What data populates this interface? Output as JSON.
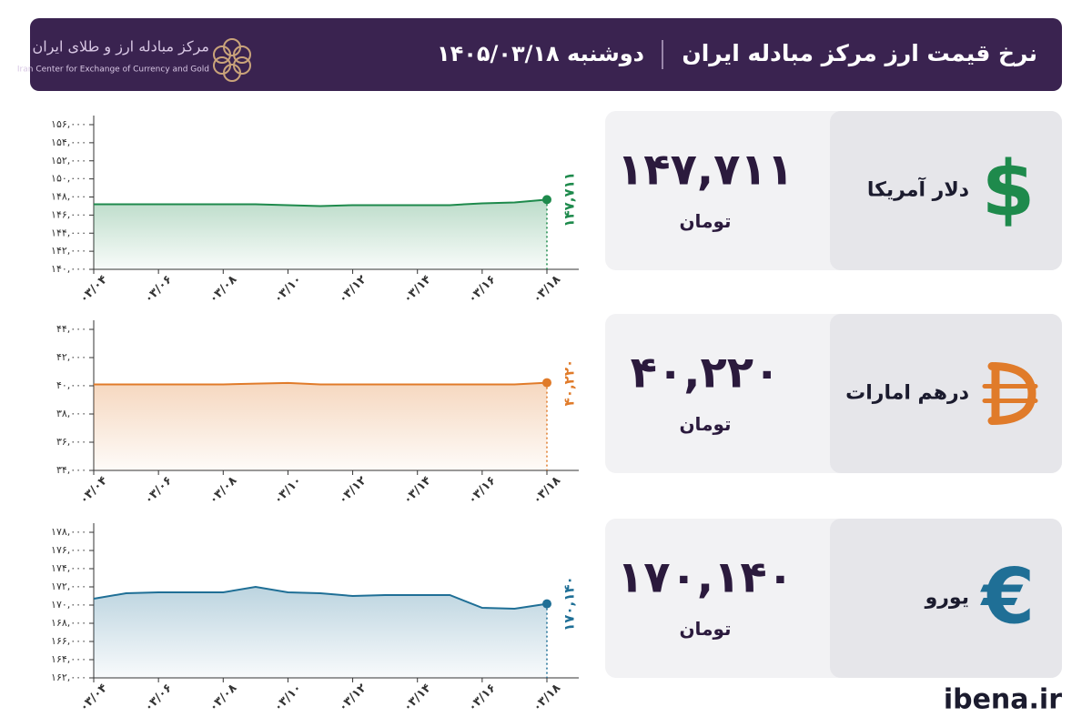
{
  "header": {
    "title": "نرخ قیمت ارز مرکز مبادله ایران",
    "date": "دوشنبه  ۱۴۰۵/۰۳/۱۸",
    "logo_name": "مرکز مبادله ارز و طلای ایران",
    "logo_subtitle": "Iran Center for Exchange of Currency and Gold"
  },
  "chart_data": [
    {
      "type": "line",
      "name": "دلار آمریکا",
      "symbol": "$",
      "price": "۱۴۷,۷۱۱",
      "unit": "تومان",
      "color": "#1e8a4c",
      "categories": [
        "۰۳/۰۴",
        null,
        "۰۳/۰۶",
        null,
        "۰۳/۰۸",
        null,
        "۰۳/۱۰",
        null,
        "۰۳/۱۲",
        null,
        "۰۳/۱۴",
        null,
        "۰۳/۱۶",
        null,
        "۰۳/۱۸"
      ],
      "values": [
        147200,
        147200,
        147200,
        147200,
        147200,
        147200,
        147100,
        147000,
        147100,
        147100,
        147100,
        147100,
        147300,
        147400,
        147711
      ],
      "value_labels": [
        null,
        null,
        null,
        null,
        null,
        null,
        null,
        null,
        null,
        null,
        null,
        null,
        null,
        null,
        "۱۴۷,۷۱۱"
      ],
      "ylim": [
        140000,
        156000
      ],
      "yticks": [
        {
          "value": 140000,
          "label": "۱۴۰,۰۰۰"
        },
        {
          "value": 142000,
          "label": "۱۴۲,۰۰۰"
        },
        {
          "value": 144000,
          "label": "۱۴۴,۰۰۰"
        },
        {
          "value": 146000,
          "label": "۱۴۶,۰۰۰"
        },
        {
          "value": 148000,
          "label": "۱۴۸,۰۰۰"
        },
        {
          "value": 150000,
          "label": "۱۵۰,۰۰۰"
        },
        {
          "value": 152000,
          "label": "۱۵۲,۰۰۰"
        },
        {
          "value": 154000,
          "label": "۱۵۴,۰۰۰"
        },
        {
          "value": 156000,
          "label": "۱۵۶,۰۰۰"
        }
      ]
    },
    {
      "type": "line",
      "name": "درهم امارات",
      "price": "۴۰,۲۲۰",
      "unit": "تومان",
      "color": "#e07b2a",
      "categories": [
        "۰۳/۰۴",
        null,
        "۰۳/۰۶",
        null,
        "۰۳/۰۸",
        null,
        "۰۳/۱۰",
        null,
        "۰۳/۱۲",
        null,
        "۰۳/۱۴",
        null,
        "۰۳/۱۶",
        null,
        "۰۳/۱۸"
      ],
      "values": [
        40100,
        40100,
        40100,
        40100,
        40100,
        40150,
        40200,
        40100,
        40100,
        40100,
        40100,
        40100,
        40100,
        40100,
        40220
      ],
      "value_labels": [
        null,
        null,
        null,
        null,
        null,
        null,
        null,
        null,
        null,
        null,
        null,
        null,
        null,
        null,
        "۴۰,۲۲۰"
      ],
      "ylim": [
        34000,
        44000
      ],
      "yticks": [
        {
          "value": 34000,
          "label": "۳۴,۰۰۰"
        },
        {
          "value": 36000,
          "label": "۳۶,۰۰۰"
        },
        {
          "value": 38000,
          "label": "۳۸,۰۰۰"
        },
        {
          "value": 40000,
          "label": "۴۰,۰۰۰"
        },
        {
          "value": 42000,
          "label": "۴۲,۰۰۰"
        },
        {
          "value": 44000,
          "label": "۴۴,۰۰۰"
        }
      ]
    },
    {
      "type": "line",
      "name": "یورو",
      "symbol": "€",
      "price": "۱۷۰,۱۴۰",
      "unit": "تومان",
      "color": "#1f6f96",
      "categories": [
        "۰۳/۰۴",
        null,
        "۰۳/۰۶",
        null,
        "۰۳/۰۸",
        null,
        "۰۳/۱۰",
        null,
        "۰۳/۱۲",
        null,
        "۰۳/۱۴",
        null,
        "۰۳/۱۶",
        null,
        "۰۳/۱۸"
      ],
      "values": [
        170700,
        171300,
        171400,
        171400,
        171400,
        172000,
        171400,
        171300,
        171000,
        171100,
        171100,
        171100,
        169700,
        169600,
        170140
      ],
      "value_labels": [
        null,
        null,
        null,
        null,
        null,
        null,
        null,
        null,
        null,
        null,
        null,
        null,
        null,
        null,
        "۱۷۰,۱۴۰"
      ],
      "ylim": [
        162000,
        178000
      ],
      "yticks": [
        {
          "value": 162000,
          "label": "۱۶۲,۰۰۰"
        },
        {
          "value": 164000,
          "label": "۱۶۴,۰۰۰"
        },
        {
          "value": 166000,
          "label": "۱۶۶,۰۰۰"
        },
        {
          "value": 168000,
          "label": "۱۶۸,۰۰۰"
        },
        {
          "value": 170000,
          "label": "۱۷۰,۰۰۰"
        },
        {
          "value": 172000,
          "label": "۱۷۲,۰۰۰"
        },
        {
          "value": 174000,
          "label": "۱۷۴,۰۰۰"
        },
        {
          "value": 176000,
          "label": "۱۷۶,۰۰۰"
        },
        {
          "value": 178000,
          "label": "۱۷۸,۰۰۰"
        }
      ]
    }
  ],
  "footer": "ibena.ir"
}
